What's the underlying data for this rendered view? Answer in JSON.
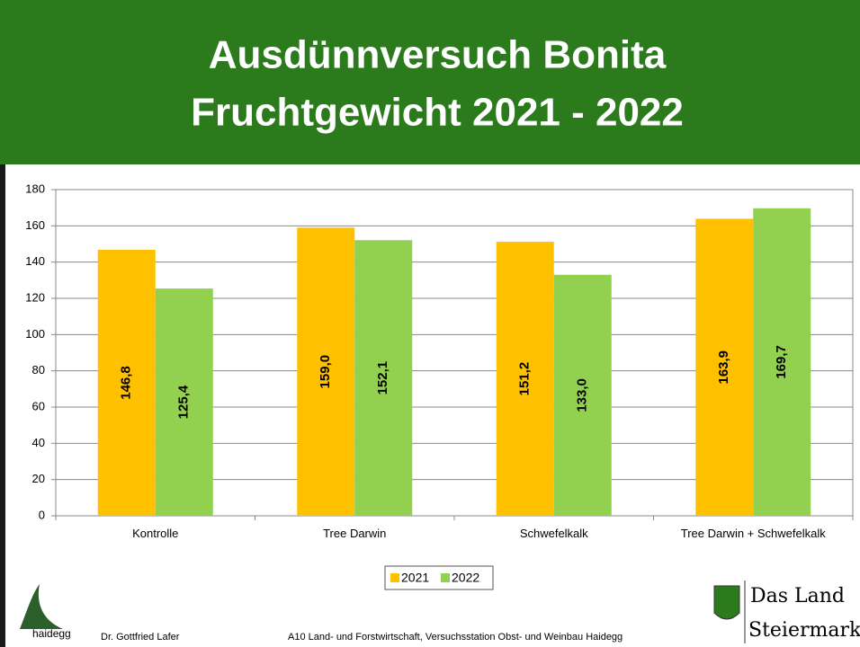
{
  "chart_data": {
    "type": "bar",
    "title": "Ausdünnversuch Bonita",
    "subtitle": "Fruchtgewicht 2021 - 2022",
    "categories": [
      "Kontrolle",
      "Tree Darwin",
      "Schwefelkalk",
      "Tree Darwin + Schwefelkalk"
    ],
    "series": [
      {
        "name": "2021",
        "color": "#ffc000",
        "values": [
          146.8,
          159.0,
          151.2,
          163.9
        ],
        "value_labels": [
          "146,8",
          "159,0",
          "151,2",
          "163,9"
        ]
      },
      {
        "name": "2022",
        "color": "#92d050",
        "values": [
          125.4,
          152.1,
          133.0,
          169.7
        ],
        "value_labels": [
          "125,4",
          "152,1",
          "133,0",
          "169,7"
        ]
      }
    ],
    "ylim": [
      0,
      180
    ],
    "yticks": [
      0,
      20,
      40,
      60,
      80,
      100,
      120,
      140,
      160,
      180
    ],
    "grid": true,
    "legend": "bottom"
  },
  "footer": {
    "logo": "haidegg",
    "author": "Dr. Gottfried Lafer",
    "institution": "A10 Land- und Forstwirtschaft, Versuchsstation Obst- und Weinbau Haidegg",
    "brand_line1": "Das Land",
    "brand_line2": "Steiermark"
  }
}
